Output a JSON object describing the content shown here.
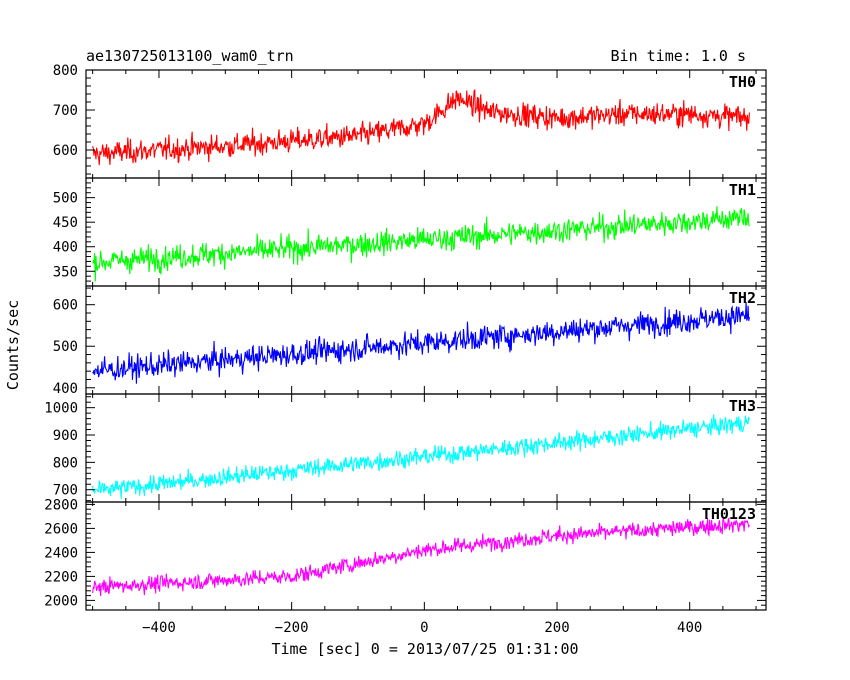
{
  "chart_data": {
    "type": "line",
    "title": "ae130725013100_wam0_trn",
    "subtitle": "Bin time: 1.0 s",
    "xlabel": "Time [sec] 0 = 2013/07/25 01:31:00",
    "ylabel": "Counts/sec",
    "xlim": [
      -510,
      515
    ],
    "xticks": [
      -400,
      -200,
      0,
      200,
      400
    ],
    "x_range": [
      -500,
      490
    ],
    "x_step": 1,
    "grid": false,
    "legend": "none",
    "panels": [
      {
        "name": "TH0",
        "color": "#ff0000",
        "ylim": [
          530,
          800
        ],
        "yticks": [
          600,
          700,
          800
        ],
        "trend_x": [
          -500,
          -300,
          -100,
          0,
          50,
          100,
          200,
          300,
          400,
          490
        ],
        "trend_y": [
          590,
          610,
          635,
          665,
          730,
          695,
          680,
          690,
          690,
          680
        ],
        "noise": 38
      },
      {
        "name": "TH1",
        "color": "#00ff00",
        "ylim": [
          320,
          540
        ],
        "yticks": [
          350,
          400,
          450,
          500
        ],
        "trend_x": [
          -500,
          490
        ],
        "trend_y": [
          368,
          460
        ],
        "noise": 32
      },
      {
        "name": "TH2",
        "color": "#0000ff",
        "ylim": [
          385,
          645
        ],
        "yticks": [
          400,
          500,
          600
        ],
        "trend_x": [
          -500,
          490
        ],
        "trend_y": [
          440,
          575
        ],
        "noise": 38
      },
      {
        "name": "TH3",
        "color": "#00ffff",
        "ylim": [
          655,
          1050
        ],
        "yticks": [
          700,
          800,
          900,
          1000
        ],
        "trend_x": [
          -500,
          490
        ],
        "trend_y": [
          695,
          945
        ],
        "noise": 42
      },
      {
        "name": "TH0123",
        "color": "#ff00ff",
        "ylim": [
          1920,
          2820
        ],
        "yticks": [
          2000,
          2200,
          2400,
          2600,
          2800
        ],
        "trend_x": [
          -500,
          -200,
          0,
          200,
          490
        ],
        "trend_y": [
          2110,
          2200,
          2420,
          2540,
          2640
        ],
        "noise": 85
      }
    ]
  }
}
